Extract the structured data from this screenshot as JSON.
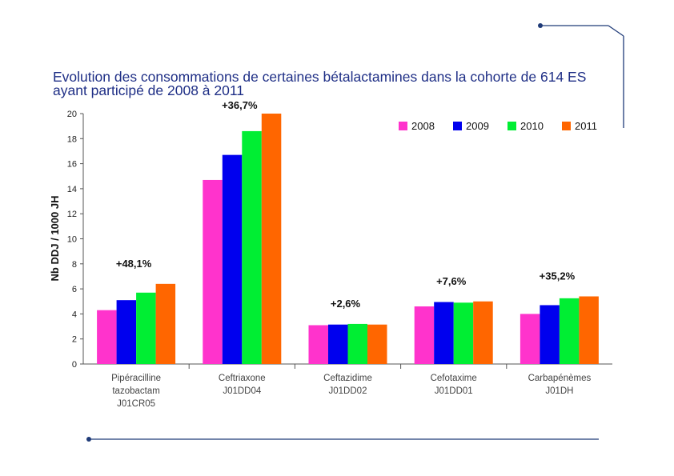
{
  "chart_data": {
    "type": "bar",
    "title": "Evolution des consommations de certaines bétalactamines dans la cohorte de 614 ES ayant participé de 2008 à 2011",
    "ylabel": "Nb DDJ / 1000 JH",
    "xlabel": "",
    "ylim": [
      0,
      20
    ],
    "yticks": [
      0,
      2,
      4,
      6,
      8,
      10,
      12,
      14,
      16,
      18,
      20
    ],
    "legend_position": "top-right",
    "categories": [
      [
        "Pipéracilline",
        "tazobactam",
        "J01CR05"
      ],
      [
        "Ceftriaxone",
        "J01DD04"
      ],
      [
        "Ceftazidime",
        "J01DD02"
      ],
      [
        "Cefotaxime",
        "J01DD01"
      ],
      [
        "Carbapénèmes",
        "J01DH"
      ]
    ],
    "series": [
      {
        "name": "2008",
        "color": "#ff33cc",
        "values": [
          4.3,
          14.7,
          3.1,
          4.6,
          4.0
        ]
      },
      {
        "name": "2009",
        "color": "#0000ee",
        "values": [
          5.1,
          16.7,
          3.15,
          4.95,
          4.7
        ]
      },
      {
        "name": "2010",
        "color": "#00ee33",
        "values": [
          5.7,
          18.6,
          3.2,
          4.9,
          5.25
        ]
      },
      {
        "name": "2011",
        "color": "#ff6600",
        "values": [
          6.4,
          20.0,
          3.15,
          5.0,
          5.4
        ]
      }
    ],
    "annotations": [
      "+48,1%",
      "+36,7%",
      "+2,6%",
      "+7,6%",
      "+35,2%"
    ]
  },
  "decor": {
    "line_color": "#1f3b78",
    "title_color": "#1f2f86"
  }
}
